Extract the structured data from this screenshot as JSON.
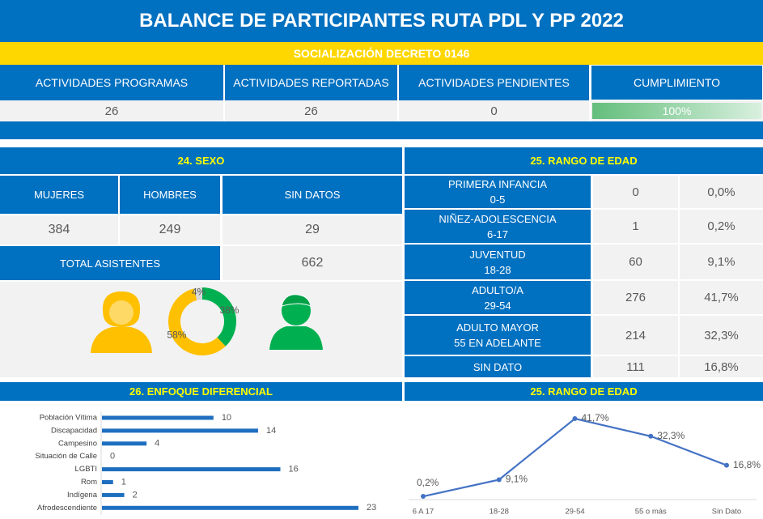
{
  "header": {
    "title": "BALANCE DE PARTICIPANTES RUTA PDL Y PP 2022",
    "subtitle": "SOCIALIZACIÓN DECRETO 0146"
  },
  "summary": {
    "columns": [
      "ACTIVIDADES PROGRAMAS",
      "ACTIVIDADES REPORTADAS",
      "ACTIVIDADES PENDIENTES",
      "CUMPLIMIENTO"
    ],
    "values": [
      26,
      26,
      0
    ],
    "cumplimiento": {
      "value": 100,
      "label": "100%"
    }
  },
  "sexo": {
    "title": "24. SEXO",
    "columns": [
      "MUJERES",
      "HOMBRES",
      "SIN DATOS"
    ],
    "values": [
      384,
      249,
      29
    ],
    "total_label": "TOTAL ASISTENTES",
    "total": 662
  },
  "edad": {
    "title": "25. RANGO DE EDAD",
    "rows": [
      {
        "label": [
          "PRIMERA INFANCIA",
          "0-5"
        ],
        "count": 0,
        "percent": "0,0%"
      },
      {
        "label": [
          "NIÑEZ-ADOLESCENCIA",
          "6-17"
        ],
        "count": 1,
        "percent": "0,2%"
      },
      {
        "label": [
          "JUVENTUD",
          "18-28"
        ],
        "count": 60,
        "percent": "9,1%"
      },
      {
        "label": [
          "ADULTO/A",
          "29-54"
        ],
        "count": 276,
        "percent": "41,7%"
      },
      {
        "label": [
          "ADULTO MAYOR",
          "55 EN ADELANTE"
        ],
        "count": 214,
        "percent": "32,3%"
      },
      {
        "label": [
          "SIN DATO"
        ],
        "count": 111,
        "percent": "16,8%"
      }
    ]
  },
  "chart_data": [
    {
      "type": "donut",
      "values": [
        38,
        58,
        4
      ],
      "value_labels": [
        "38%",
        "58%",
        "4%"
      ],
      "colors": [
        "#00b050",
        "#ffc000",
        "#d9d9d9"
      ]
    },
    {
      "type": "hbar",
      "title": "26. ENFOQUE DIFERENCIAL",
      "categories": [
        "Población Vítima",
        "Discapacidad",
        "Campesino",
        "Situación de Calle",
        "LGBTI",
        "Rom",
        "Indígena",
        "Afrodescendiente"
      ],
      "values": [
        10,
        14,
        4,
        0,
        16,
        1,
        2,
        23
      ],
      "color": "#1f6fc0"
    },
    {
      "type": "line",
      "title": "25. RANGO DE EDAD",
      "categories": [
        "6 A 17",
        "18-28",
        "29-54",
        "55 o más",
        "Sin Dato"
      ],
      "values": [
        0.2,
        9.1,
        41.7,
        32.3,
        16.8
      ],
      "value_labels": [
        "0,2%",
        "9,1%",
        "41,7%",
        "32,3%",
        "16,8%"
      ],
      "color": "#4472c4"
    }
  ]
}
